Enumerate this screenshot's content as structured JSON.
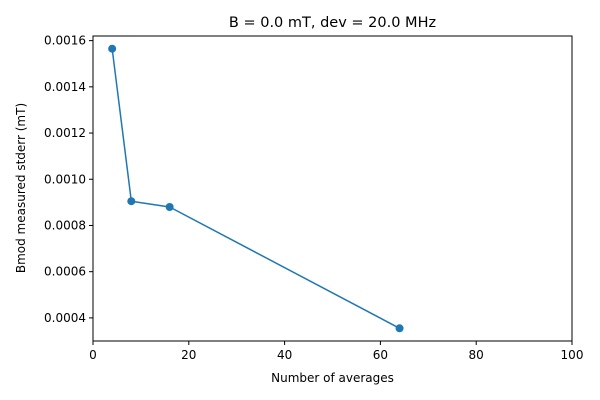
{
  "chart_data": {
    "type": "line",
    "title": "B = 0.0 mT, dev = 20.0 MHz",
    "xlabel": "Number of averages",
    "ylabel": "Bmod measured stderr (mT)",
    "xlim": [
      0,
      100
    ],
    "ylim": [
      0.0003,
      0.00162
    ],
    "xticks": [
      0,
      20,
      40,
      60,
      80,
      100
    ],
    "xtick_labels": [
      "0",
      "20",
      "40",
      "60",
      "80",
      "100"
    ],
    "yticks": [
      0.0004,
      0.0006,
      0.0008,
      0.001,
      0.0012,
      0.0014,
      0.0016
    ],
    "ytick_labels": [
      "0.0004",
      "0.0006",
      "0.0008",
      "0.0010",
      "0.0012",
      "0.0014",
      "0.0016"
    ],
    "grid": false,
    "series": [
      {
        "color": "#1f77b4",
        "marker": "circle",
        "x": [
          4,
          8,
          16,
          64
        ],
        "y": [
          0.001565,
          0.000905,
          0.00088,
          0.000355
        ]
      }
    ]
  }
}
